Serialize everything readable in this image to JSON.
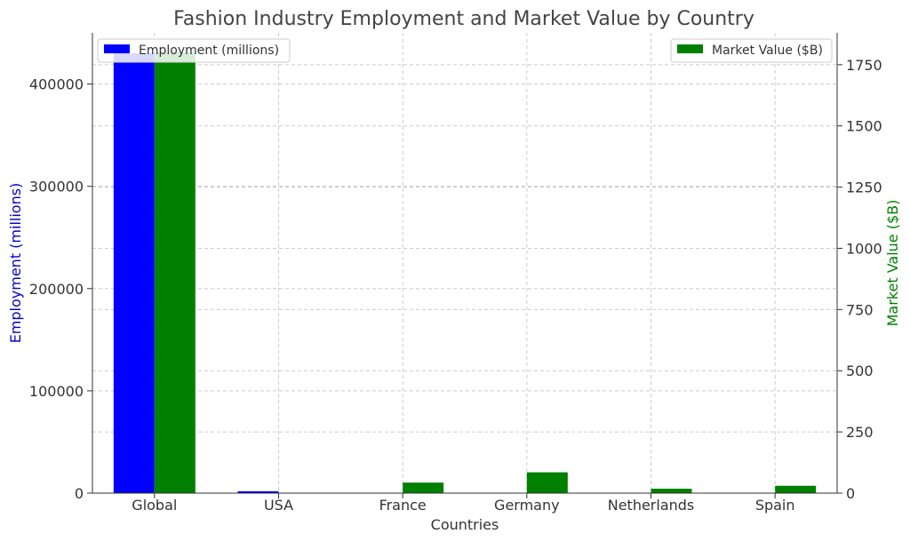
{
  "chart_data": {
    "type": "bar",
    "title": "Fashion Industry Employment and Market Value by Country",
    "xlabel": "Countries",
    "categories": [
      "Global",
      "USA",
      "France",
      "Germany",
      "Netherlands",
      "Spain"
    ],
    "y_left": {
      "label": "Employment (millions)",
      "color": "#0000ff",
      "ylim": [
        0,
        450000
      ],
      "ticks": [
        0,
        100000,
        200000,
        300000,
        400000
      ]
    },
    "y_right": {
      "label": "Market Value ($B)",
      "color": "#008000",
      "ylim": [
        0,
        1880
      ],
      "ticks": [
        0,
        250,
        500,
        750,
        1000,
        1250,
        1500,
        1750
      ]
    },
    "series": [
      {
        "name": "Employment (millions)",
        "axis": "left",
        "color": "#0000ff",
        "values": [
          430000,
          1800,
          0,
          0,
          0,
          0
        ]
      },
      {
        "name": "Market Value ($B)",
        "axis": "right",
        "color": "#008000",
        "values": [
          1800,
          0,
          43,
          85,
          18,
          30
        ]
      }
    ],
    "grid": true,
    "legend": {
      "left_series": "top-left",
      "right_series": "top-right"
    }
  }
}
